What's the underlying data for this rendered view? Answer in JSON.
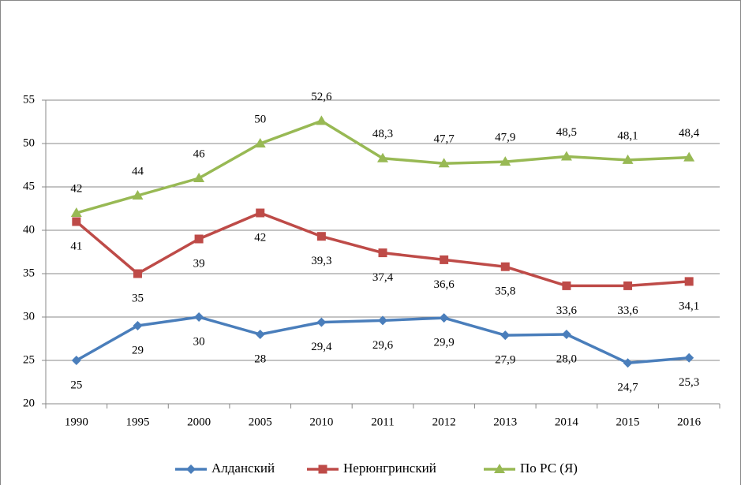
{
  "chart_data": {
    "type": "line",
    "categories": [
      "1990",
      "1995",
      "2000",
      "2005",
      "2010",
      "2011",
      "2012",
      "2013",
      "2014",
      "2015",
      "2016"
    ],
    "series": [
      {
        "name": "Алданский",
        "color": "#4a7ebb",
        "values": [
          25,
          29,
          30,
          28,
          29.4,
          29.6,
          29.9,
          27.9,
          28.0,
          24.7,
          25.3
        ],
        "value_labels": [
          "25",
          "29",
          "30",
          "28",
          "29,4",
          "29,6",
          "29,9",
          "27,9",
          "28,0",
          "24,7",
          "25,3"
        ]
      },
      {
        "name": "Нерюнгринский",
        "color": "#be4b48",
        "values": [
          41,
          35,
          39,
          42,
          39.3,
          37.4,
          36.6,
          35.8,
          33.6,
          33.6,
          34.1
        ],
        "value_labels": [
          "41",
          "35",
          "39",
          "42",
          "39,3",
          "37,4",
          "36,6",
          "35,8",
          "33,6",
          "33,6",
          "34,1"
        ]
      },
      {
        "name": "По РС (Я)",
        "color": "#98b954",
        "values": [
          42,
          44,
          46,
          50,
          52.6,
          48.3,
          47.7,
          47.9,
          48.5,
          48.1,
          48.4
        ],
        "value_labels": [
          "42",
          "44",
          "46",
          "50",
          "52,6",
          "48,3",
          "47,7",
          "47,9",
          "48,5",
          "48,1",
          "48,4"
        ]
      }
    ],
    "ylim": [
      20,
      55
    ],
    "yticks": [
      20,
      25,
      30,
      35,
      40,
      45,
      50,
      55
    ],
    "grid": true,
    "legend": "bottom"
  }
}
